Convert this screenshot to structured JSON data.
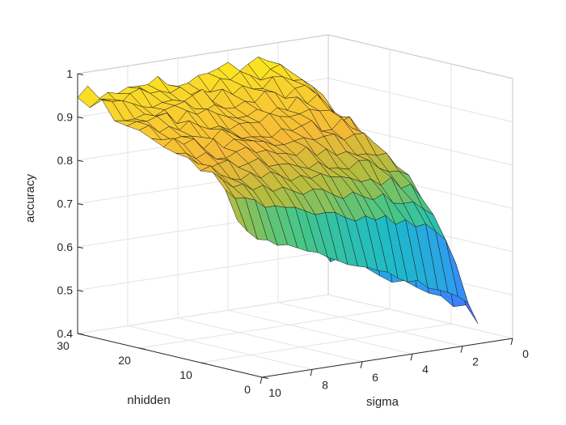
{
  "chart_data": {
    "type": "surface3d",
    "zlabel": "accuracy",
    "xlabel": "nhidden",
    "ylabel": "sigma",
    "xlim": [
      0,
      30
    ],
    "ylim": [
      0,
      10
    ],
    "zlim": [
      0.4,
      1
    ],
    "x_ticks": [
      "0",
      "10",
      "20",
      "30"
    ],
    "y_ticks": [
      "0",
      "2",
      "4",
      "6",
      "8",
      "10"
    ],
    "z_ticks": [
      "0.4",
      "0.5",
      "0.6",
      "0.7",
      "0.8",
      "0.9",
      "1"
    ],
    "grid": true,
    "colormap": "parula",
    "colormap_stops": [
      "#3E26A8",
      "#4367FD",
      "#2F9AF3",
      "#1EBAC9",
      "#45C688",
      "#B4BD3E",
      "#F5B937",
      "#F9D22E",
      "#F9FB0E"
    ],
    "nhidden_values": [
      4,
      6,
      8,
      10,
      12,
      14,
      16,
      18,
      20,
      22,
      24,
      26,
      28,
      30
    ],
    "sigma_values": [
      0.4,
      0.8,
      1.2,
      1.6,
      2.0,
      2.4,
      2.8,
      3.2,
      3.6,
      4.0,
      4.4,
      4.8,
      5.2,
      5.6,
      6.0,
      6.4,
      6.8,
      7.2,
      7.6,
      8.0,
      8.4,
      8.8,
      9.2,
      9.6,
      10.0
    ],
    "accuracy_at_nhidden_30": [
      0.5,
      0.72,
      0.9,
      0.93,
      0.95,
      0.96,
      0.96,
      0.96,
      0.96,
      0.96,
      0.95,
      0.95,
      0.95,
      0.95,
      0.95,
      0.95,
      0.95,
      0.95,
      0.95,
      0.95,
      0.95,
      0.95,
      0.95,
      0.95,
      0.95
    ],
    "accuracy_at_nhidden_4": [
      0.43,
      0.48,
      0.5,
      0.51,
      0.52,
      0.53,
      0.54,
      0.55,
      0.56,
      0.57,
      0.58,
      0.59,
      0.6,
      0.61,
      0.62,
      0.63,
      0.64,
      0.65,
      0.66,
      0.67,
      0.68,
      0.69,
      0.7,
      0.72,
      0.75
    ]
  }
}
